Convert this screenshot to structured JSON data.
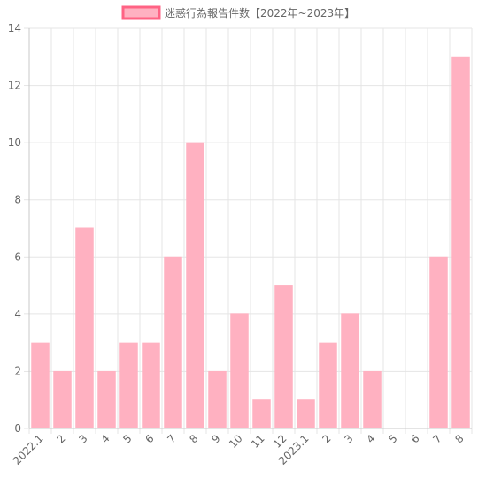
{
  "chart_data": {
    "type": "bar",
    "legend_label": "迷惑行為報告件数【2022年~2023年】",
    "legend_position": "top",
    "categories": [
      "2022.1",
      "2",
      "3",
      "4",
      "5",
      "6",
      "7",
      "8",
      "9",
      "10",
      "11",
      "12",
      "2023.1",
      "2",
      "3",
      "4",
      "5",
      "6",
      "7",
      "8"
    ],
    "values": [
      3,
      2,
      7,
      2,
      3,
      3,
      6,
      10,
      2,
      4,
      1,
      5,
      1,
      3,
      4,
      2,
      0,
      0,
      6,
      13
    ],
    "ylim": [
      0,
      14
    ],
    "yticks": [
      "0",
      "2",
      "4",
      "6",
      "8",
      "10",
      "12",
      "14"
    ],
    "grid": true,
    "colors": {
      "fill": "#ffb1c1",
      "stroke": "#ff6384"
    }
  }
}
